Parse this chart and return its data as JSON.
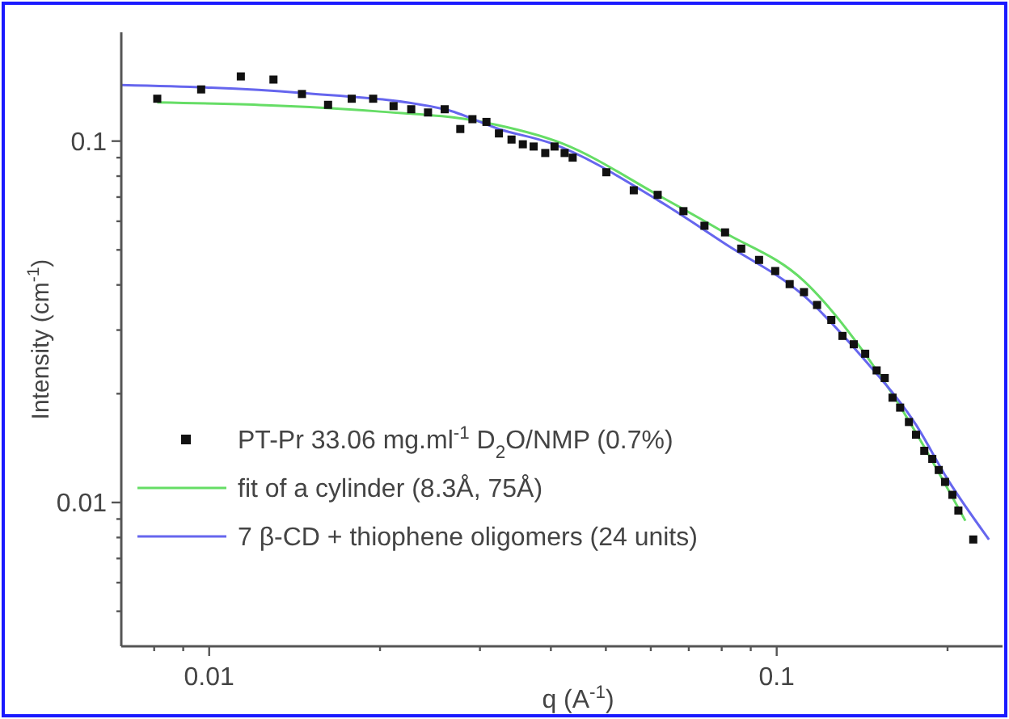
{
  "chart_data": {
    "type": "scatter",
    "xlabel": "q (A$^{-1}$)",
    "ylabel": "Intensity (cm$^{-1}$)",
    "log": "xy",
    "legend": "bottom left",
    "xlim": [
      0.007,
      0.25
    ],
    "ylim": [
      0.004,
      0.2
    ],
    "xticks": [
      {
        "value": 0.008,
        "label": null
      },
      {
        "value": 0.009,
        "label": null
      },
      0.01,
      {
        "value": 0.02,
        "label": null
      },
      {
        "value": 0.03,
        "label": null
      },
      {
        "value": 0.04,
        "label": null
      },
      {
        "value": 0.05,
        "label": null
      },
      {
        "value": 0.06,
        "label": null
      },
      {
        "value": 0.07,
        "label": null
      },
      {
        "value": 0.08,
        "label": null
      },
      {
        "value": 0.09,
        "label": null
      },
      0.1,
      {
        "value": 0.2,
        "label": null
      }
    ],
    "yticks": [
      {
        "value": 0.005,
        "label": null
      },
      {
        "value": 0.006,
        "label": null
      },
      {
        "value": 0.007,
        "label": null
      },
      {
        "value": 0.008,
        "label": null
      },
      {
        "value": 0.009,
        "label": null
      },
      0.01,
      {
        "value": 0.02,
        "label": null
      },
      {
        "value": 0.03,
        "label": null
      },
      {
        "value": 0.04,
        "label": null
      },
      {
        "value": 0.05,
        "label": null
      },
      {
        "value": 0.06,
        "label": null
      },
      {
        "value": 0.07,
        "label": null
      },
      {
        "value": 0.08,
        "label": null
      },
      {
        "value": 0.09,
        "label": null
      },
      0.1
    ],
    "series": [
      {
        "name": "PT-Pr 33.06 mg.ml$^{-1}$ D$_{2}$O/NMP (0.7%)",
        "marker": "square",
        "color": "#111111",
        "x": [
          0.0081,
          0.00968,
          0.01137,
          0.01298,
          0.01457,
          0.0162,
          0.01783,
          0.01945,
          0.02113,
          0.0227,
          0.0243,
          0.026,
          0.0277,
          0.0291,
          0.0308,
          0.0324,
          0.0341,
          0.0357,
          0.0373,
          0.0391,
          0.0406,
          0.0423,
          0.0437,
          0.0501,
          0.056,
          0.0617,
          0.0685,
          0.0746,
          0.0811,
          0.0866,
          0.0931,
          0.0994,
          0.1054,
          0.1117,
          0.1178,
          0.1248,
          0.1306,
          0.1367,
          0.1432,
          0.15,
          0.155,
          0.16,
          0.165,
          0.171,
          0.176,
          0.182,
          0.188,
          0.193,
          0.198,
          0.204,
          0.209,
          0.222
        ],
        "values": [
          0.131,
          0.139,
          0.151,
          0.148,
          0.135,
          0.126,
          0.131,
          0.131,
          0.125,
          0.1225,
          0.12,
          0.1225,
          0.108,
          0.115,
          0.113,
          0.105,
          0.101,
          0.098,
          0.0966,
          0.0927,
          0.0966,
          0.0927,
          0.09,
          0.082,
          0.0731,
          0.071,
          0.064,
          0.0583,
          0.0559,
          0.0504,
          0.0469,
          0.0437,
          0.0402,
          0.0382,
          0.0352,
          0.032,
          0.0289,
          0.0274,
          0.0258,
          0.0232,
          0.0221,
          0.0195,
          0.0183,
          0.0167,
          0.0154,
          0.0139,
          0.0132,
          0.0123,
          0.0114,
          0.0105,
          0.0095,
          0.0079
        ]
      },
      {
        "name": "fit of a cylinder (8.3Å, 75Å)",
        "type": "line",
        "marker": "none",
        "line_style": "solid",
        "color": "#66dd66",
        "x": [
          0.0081,
          0.0196,
          0.0303,
          0.042,
          0.0617,
          0.0806,
          0.1117,
          0.15,
          0.215
        ],
        "values": [
          0.128,
          0.121,
          0.113,
          0.0984,
          0.071,
          0.056,
          0.041,
          0.0232,
          0.0089
        ]
      },
      {
        "name": "7  β-CD  + thiophene oligomers (24 units)",
        "type": "line",
        "marker": "none",
        "line_style": "solid",
        "color": "#6666ee",
        "x": [
          0.007,
          0.0145,
          0.026,
          0.0324,
          0.04,
          0.0617,
          0.0811,
          0.1117,
          0.1432,
          0.176,
          0.2,
          0.2366
        ],
        "values": [
          0.143,
          0.136,
          0.1225,
          0.108,
          0.0987,
          0.0687,
          0.052,
          0.0373,
          0.0247,
          0.0164,
          0.0116,
          0.0079
        ]
      }
    ]
  }
}
